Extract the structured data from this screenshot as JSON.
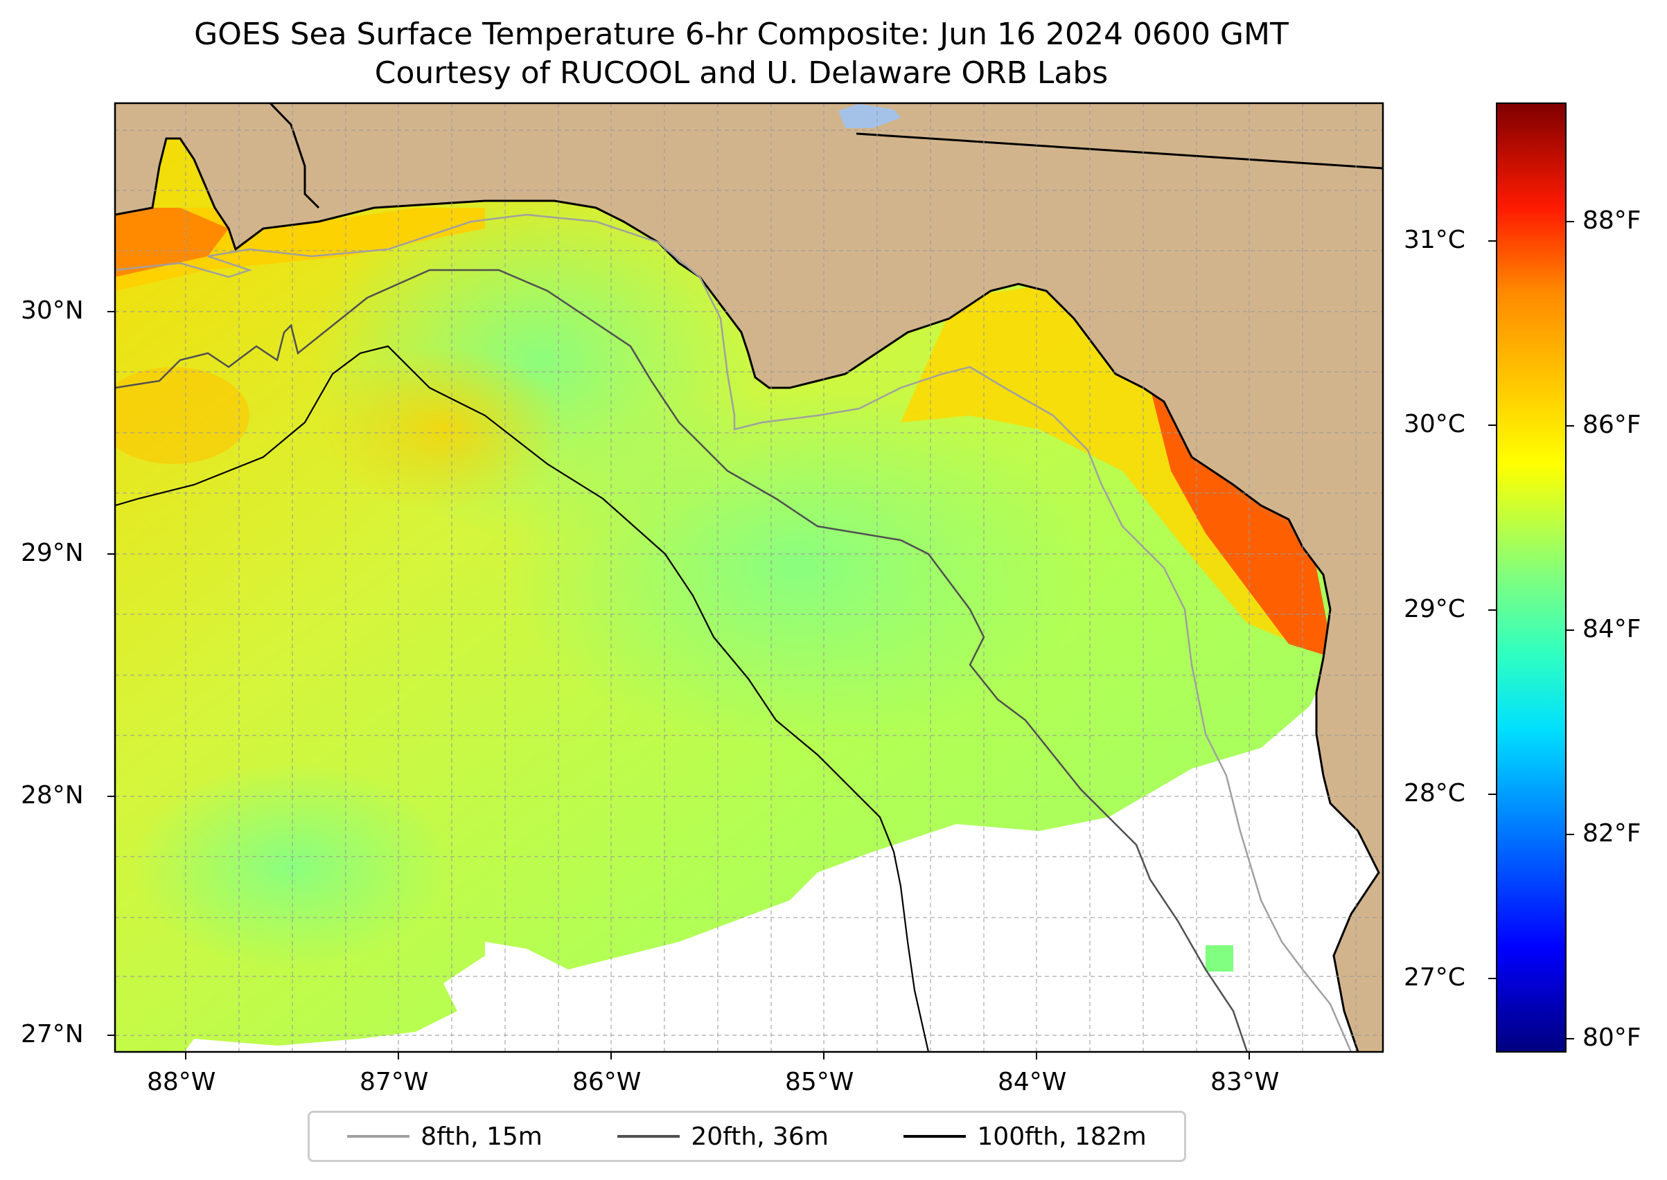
{
  "title": "GOES Sea Surface Temperature 6-hr Composite: Jun 16 2024 0600 GMT",
  "subtitle": "Courtesy of RUCOOL and U. Delaware ORB Labs",
  "map": {
    "lon_ticks": [
      "88°W",
      "87°W",
      "86°W",
      "85°W",
      "84°W",
      "83°W"
    ],
    "lat_ticks": [
      "30°N",
      "29°N",
      "28°N",
      "27°N"
    ],
    "land_color": "#d2b48c",
    "nodata_color": "#ffffff"
  },
  "colorbar": {
    "celsius_ticks": [
      "31°C",
      "30°C",
      "29°C",
      "28°C",
      "27°C"
    ],
    "fahrenheit_ticks": [
      "88°F",
      "86°F",
      "84°F",
      "82°F",
      "80°F"
    ],
    "colormap": "jet"
  },
  "legend": {
    "items": [
      {
        "label": "8fth, 15m",
        "color": "#a0a0a0"
      },
      {
        "label": "20fth, 36m",
        "color": "#505050"
      },
      {
        "label": "100fth, 182m",
        "color": "#000000"
      }
    ]
  }
}
